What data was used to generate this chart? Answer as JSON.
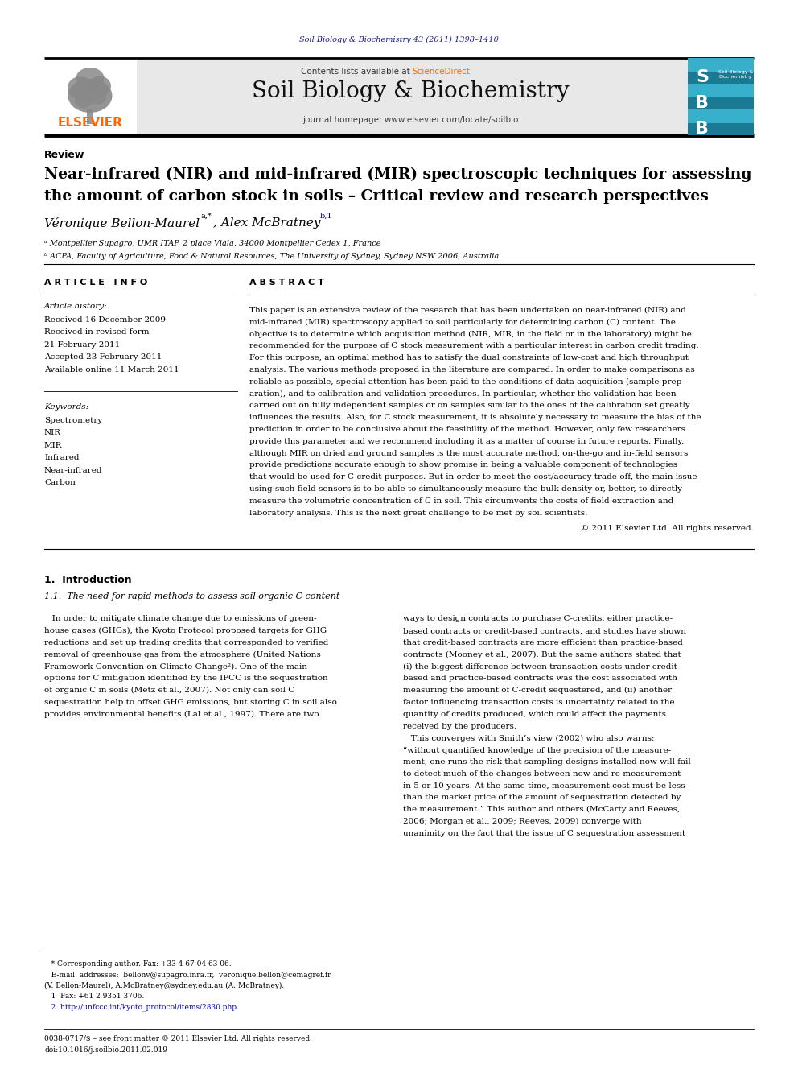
{
  "bg_color": "#ffffff",
  "page_width": 9.92,
  "page_height": 13.23,
  "journal_citation": "Soil Biology & Biochemistry 43 (2011) 1398–1410",
  "journal_citation_color": "#1a1a8c",
  "contents_text": "Contents lists available at ",
  "sciencedirect_text": "ScienceDirect",
  "sciencedirect_color": "#FF6600",
  "journal_name": "Soil Biology & Biochemistry",
  "journal_homepage": "journal homepage: www.elsevier.com/locate/soilbio",
  "elsevier_color": "#FF6600",
  "elsevier_text": "ELSEVIER",
  "section_label": "Review",
  "article_title_line1": "Near-infrared (NIR) and mid-infrared (MIR) spectroscopic techniques for assessing",
  "article_title_line2": "the amount of carbon stock in soils – Critical review and research perspectives",
  "authors_text": "Véronique Bellon-Maurel",
  "author1_super": "a,*",
  "comma_space": ", Alex McBratney",
  "author2_super": "b,1",
  "affil1": "ᵃ Montpellier Supagro, UMR ITAP, 2 place Viala, 34000 Montpellier Cedex 1, France",
  "affil2": "ᵇ ACPA, Faculty of Agriculture, Food & Natural Resources, The University of Sydney, Sydney NSW 2006, Australia",
  "article_info_title": "A R T I C L E   I N F O",
  "abstract_title": "A B S T R A C T",
  "article_history_label": "Article history:",
  "received1": "Received 16 December 2009",
  "received2": "Received in revised form",
  "date2": "21 February 2011",
  "accepted": "Accepted 23 February 2011",
  "available": "Available online 11 March 2011",
  "keywords_label": "Keywords:",
  "keywords": [
    "Spectrometry",
    "NIR",
    "MIR",
    "Infrared",
    "Near-infrared",
    "Carbon"
  ],
  "abstract_text": "This paper is an extensive review of the research that has been undertaken on near-infrared (NIR) and\nmid-infrared (MIR) spectroscopy applied to soil particularly for determining carbon (C) content. The\nobjective is to determine which acquisition method (NIR, MIR, in the field or in the laboratory) might be\nrecommended for the purpose of C stock measurement with a particular interest in carbon credit trading.\nFor this purpose, an optimal method has to satisfy the dual constraints of low-cost and high throughput\nanalysis. The various methods proposed in the literature are compared. In order to make comparisons as\nreliable as possible, special attention has been paid to the conditions of data acquisition (sample prep-\naration), and to calibration and validation procedures. In particular, whether the validation has been\ncarried out on fully independent samples or on samples similar to the ones of the calibration set greatly\ninfluences the results. Also, for C stock measurement, it is absolutely necessary to measure the bias of the\nprediction in order to be conclusive about the feasibility of the method. However, only few researchers\nprovide this parameter and we recommend including it as a matter of course in future reports. Finally,\nalthough MIR on dried and ground samples is the most accurate method, on-the-go and in-field sensors\nprovide predictions accurate enough to show promise in being a valuable component of technologies\nthat would be used for C-credit purposes. But in order to meet the cost/accuracy trade-off, the main issue\nusing such field sensors is to be able to simultaneously measure the bulk density or, better, to directly\nmeasure the volumetric concentration of C in soil. This circumvents the costs of field extraction and\nlaboratory analysis. This is the next great challenge to be met by soil scientists.",
  "copyright_text": "© 2011 Elsevier Ltd. All rights reserved.",
  "intro_title": "1.  Introduction",
  "intro_sub": "1.1.  The need for rapid methods to assess soil organic C content",
  "intro_col1_lines": [
    "   In order to mitigate climate change due to emissions of green-",
    "house gases (GHGs), the Kyoto Protocol proposed targets for GHG",
    "reductions and set up trading credits that corresponded to verified",
    "removal of greenhouse gas from the atmosphere (United Nations",
    "Framework Convention on Climate Change²). One of the main",
    "options for C mitigation identified by the IPCC is the sequestration",
    "of organic C in soils (Metz et al., 2007). Not only can soil C",
    "sequestration help to offset GHG emissions, but storing C in soil also",
    "provides environmental benefits (Lal et al., 1997). There are two"
  ],
  "intro_col2_lines": [
    "ways to design contracts to purchase C-credits, either practice-",
    "based contracts or credit-based contracts, and studies have shown",
    "that credit-based contracts are more efficient than practice-based",
    "contracts (Mooney et al., 2007). But the same authors stated that",
    "(i) the biggest difference between transaction costs under credit-",
    "based and practice-based contracts was the cost associated with",
    "measuring the amount of C-credit sequestered, and (ii) another",
    "factor influencing transaction costs is uncertainty related to the",
    "quantity of credits produced, which could affect the payments",
    "received by the producers.",
    "   This converges with Smith’s view (2002) who also warns:",
    "“without quantified knowledge of the precision of the measure-",
    "ment, one runs the risk that sampling designs installed now will fail",
    "to detect much of the changes between now and re-measurement",
    "in 5 or 10 years. At the same time, measurement cost must be less",
    "than the market price of the amount of sequestration detected by",
    "the measurement.” This author and others (McCarty and Reeves,",
    "2006; Morgan et al., 2009; Reeves, 2009) converge with",
    "unanimity on the fact that the issue of C sequestration assessment"
  ],
  "footnote_star": "   * Corresponding author. Fax: +33 4 67 04 63 06.",
  "footnote_email": "   E-mail  addresses:  bellonv@supagro.inra.fr,  veronique.bellon@cemagref.fr",
  "footnote_email2": "(V. Bellon-Maurel), A.McBratney@sydney.edu.au (A. McBratney).",
  "footnote_1": "   1  Fax: +61 2 9351 3706.",
  "footnote_2": "   2  http://unfccc.int/kyoto_protocol/items/2830.php.",
  "bottom_line1": "0038-0717/$ – see front matter © 2011 Elsevier Ltd. All rights reserved.",
  "bottom_line2": "doi:10.1016/j.soilbio.2011.02.019"
}
